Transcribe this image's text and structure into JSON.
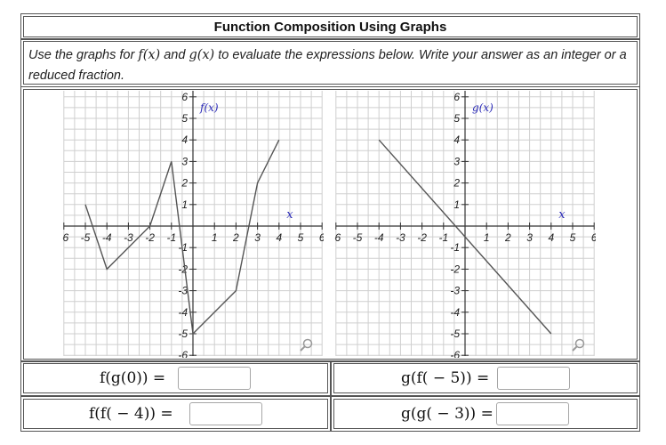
{
  "title": "Function Composition Using Graphs",
  "instructions": {
    "pre": "Use the graphs for ",
    "f": "f(x)",
    "and": " and ",
    "g": "g(x)",
    "post": " to evaluate the expressions below. Write your answer as an integer or a reduced fraction."
  },
  "questions": [
    {
      "expr": "f(g(0)) =",
      "value": ""
    },
    {
      "expr": "g(f( − 5)) =",
      "value": ""
    },
    {
      "expr": "f(f( − 4)) =",
      "value": ""
    },
    {
      "expr": "g(g( − 3)) =",
      "value": ""
    }
  ],
  "chart_data": [
    {
      "type": "line",
      "title": "f(x)",
      "xlabel": "x",
      "ylabel": "",
      "xlim": [
        -6,
        6
      ],
      "ylim": [
        -6,
        6
      ],
      "grid": true,
      "x_ticks": [
        "-6",
        "-5",
        "-4",
        "-3",
        "-2",
        "-1",
        "1",
        "2",
        "3",
        "4",
        "5",
        "6"
      ],
      "y_ticks": [
        "6",
        "5",
        "4",
        "3",
        "2",
        "1",
        "-1",
        "-2",
        "-3",
        "-4",
        "-5",
        "-6"
      ],
      "series": [
        {
          "points": [
            [
              -5,
              1
            ],
            [
              -4,
              -2
            ],
            [
              -2,
              0
            ],
            [
              -1,
              3
            ],
            [
              0,
              -5
            ],
            [
              2,
              -3
            ],
            [
              3,
              2
            ],
            [
              4,
              4
            ]
          ]
        }
      ]
    },
    {
      "type": "line",
      "title": "g(x)",
      "xlabel": "x",
      "ylabel": "",
      "xlim": [
        -6,
        6
      ],
      "ylim": [
        -6,
        6
      ],
      "grid": true,
      "x_ticks": [
        "-6",
        "-5",
        "-4",
        "-3",
        "-2",
        "-1",
        "1",
        "2",
        "3",
        "4",
        "5",
        "6"
      ],
      "y_ticks": [
        "6",
        "5",
        "4",
        "3",
        "2",
        "1",
        "-1",
        "-2",
        "-3",
        "-4",
        "-5",
        "-6"
      ],
      "series": [
        {
          "points": [
            [
              -4,
              4
            ],
            [
              4,
              -5
            ]
          ]
        }
      ]
    }
  ],
  "colors": {
    "curve": "#555555",
    "grid": "#cfcfcf",
    "label": "#2b2bb8"
  },
  "icons": [
    "magnify-icon",
    "magnify-icon"
  ]
}
